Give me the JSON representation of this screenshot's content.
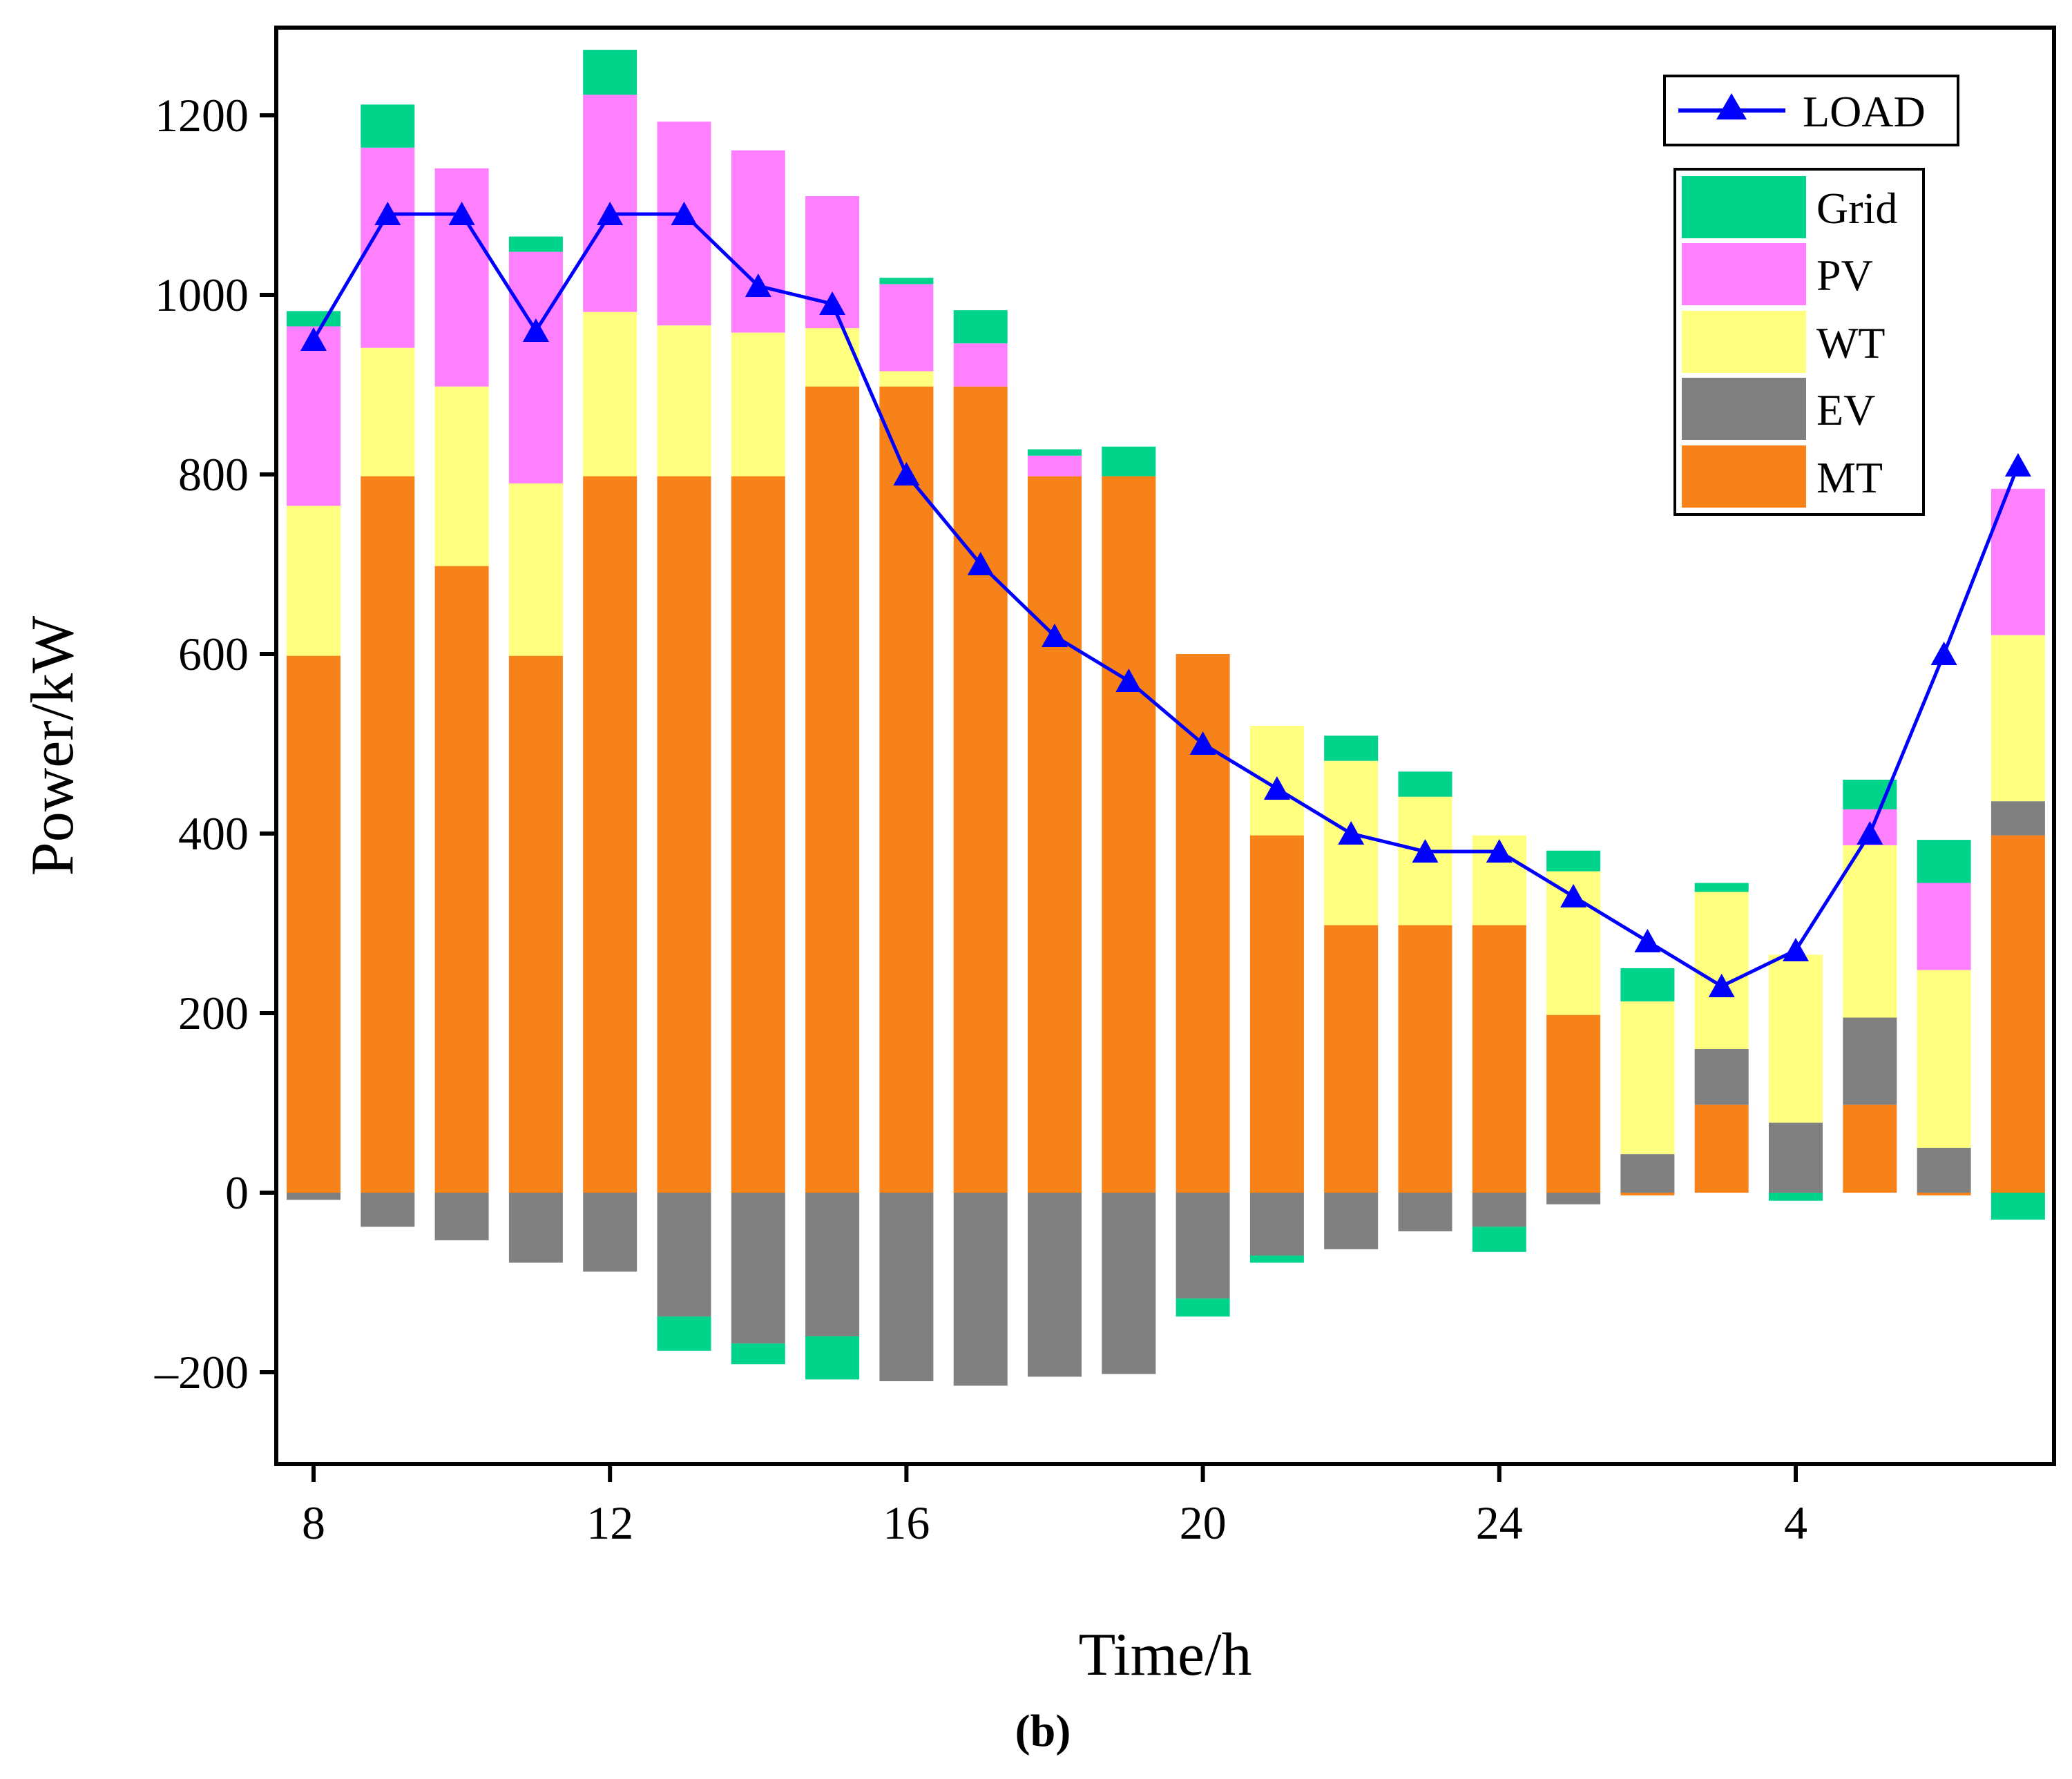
{
  "chart_data": {
    "type": "bar",
    "stacked": true,
    "title": "",
    "caption": "(b)",
    "xlabel": "Time/h",
    "ylabel": "Power/kW",
    "ylim": [
      -300,
      1300
    ],
    "y_ticks": [
      -200,
      0,
      200,
      400,
      600,
      800,
      1000,
      1200
    ],
    "y_tick_labels": [
      "–200",
      "0",
      "200",
      "400",
      "600",
      "800",
      "1000",
      "1200"
    ],
    "x_tick_labels": [
      "8",
      "12",
      "16",
      "20",
      "24",
      "4"
    ],
    "x_tick_hours": [
      8,
      12,
      16,
      20,
      24,
      28
    ],
    "categories": [
      "8",
      "9",
      "10",
      "11",
      "12",
      "13",
      "14",
      "15",
      "16",
      "17",
      "18",
      "19",
      "20",
      "21",
      "22",
      "23",
      "24",
      "1",
      "2",
      "3",
      "4",
      "5",
      "6",
      "7"
    ],
    "stack_order_bottom_to_top": [
      "MT",
      "EV",
      "WT",
      "PV",
      "Grid"
    ],
    "series": [
      {
        "name": "MT",
        "color": "#F8821A",
        "values": [
          598,
          798,
          698,
          598,
          798,
          798,
          798,
          898,
          898,
          898,
          798,
          798,
          600,
          398,
          298,
          298,
          298,
          198,
          -3,
          98,
          0,
          98,
          -3,
          398
        ]
      },
      {
        "name": "EV",
        "color": "#808080",
        "values": [
          -8,
          -38,
          -53,
          -78,
          -88,
          -138,
          -168,
          -160,
          -210,
          -215,
          -205,
          -202,
          -118,
          -70,
          -63,
          -43,
          -38,
          -13,
          43,
          62,
          78,
          97,
          50,
          38
        ]
      },
      {
        "name": "WT",
        "color": "#FFFF7F",
        "values": [
          167,
          143,
          200,
          192,
          183,
          168,
          160,
          65,
          17,
          0,
          0,
          0,
          0,
          122,
          183,
          143,
          100,
          160,
          170,
          175,
          187,
          192,
          198,
          185
        ]
      },
      {
        "name": "PV",
        "color": "#FF80FF",
        "values": [
          200,
          223,
          243,
          258,
          242,
          227,
          203,
          147,
          97,
          48,
          23,
          0,
          0,
          0,
          0,
          0,
          0,
          0,
          0,
          0,
          0,
          40,
          97,
          163
        ]
      },
      {
        "name": "Grid",
        "color": "#00D38A",
        "values": [
          17,
          48,
          0,
          17,
          50,
          -38,
          -23,
          -48,
          7,
          37,
          7,
          33,
          -20,
          -8,
          28,
          28,
          -28,
          23,
          37,
          10,
          -9,
          33,
          48,
          -30
        ]
      }
    ],
    "line_series": {
      "name": "LOAD",
      "color": "#0000FF",
      "marker": "triangle",
      "values": [
        950,
        1090,
        1090,
        960,
        1090,
        1090,
        1010,
        990,
        800,
        700,
        620,
        570,
        500,
        450,
        400,
        380,
        380,
        330,
        280,
        230,
        270,
        400,
        600,
        810
      ]
    },
    "legend": {
      "position": "top-right",
      "line_entry": "LOAD",
      "bar_entries": [
        "Grid",
        "PV",
        "WT",
        "EV",
        "MT"
      ]
    },
    "grid": false
  }
}
